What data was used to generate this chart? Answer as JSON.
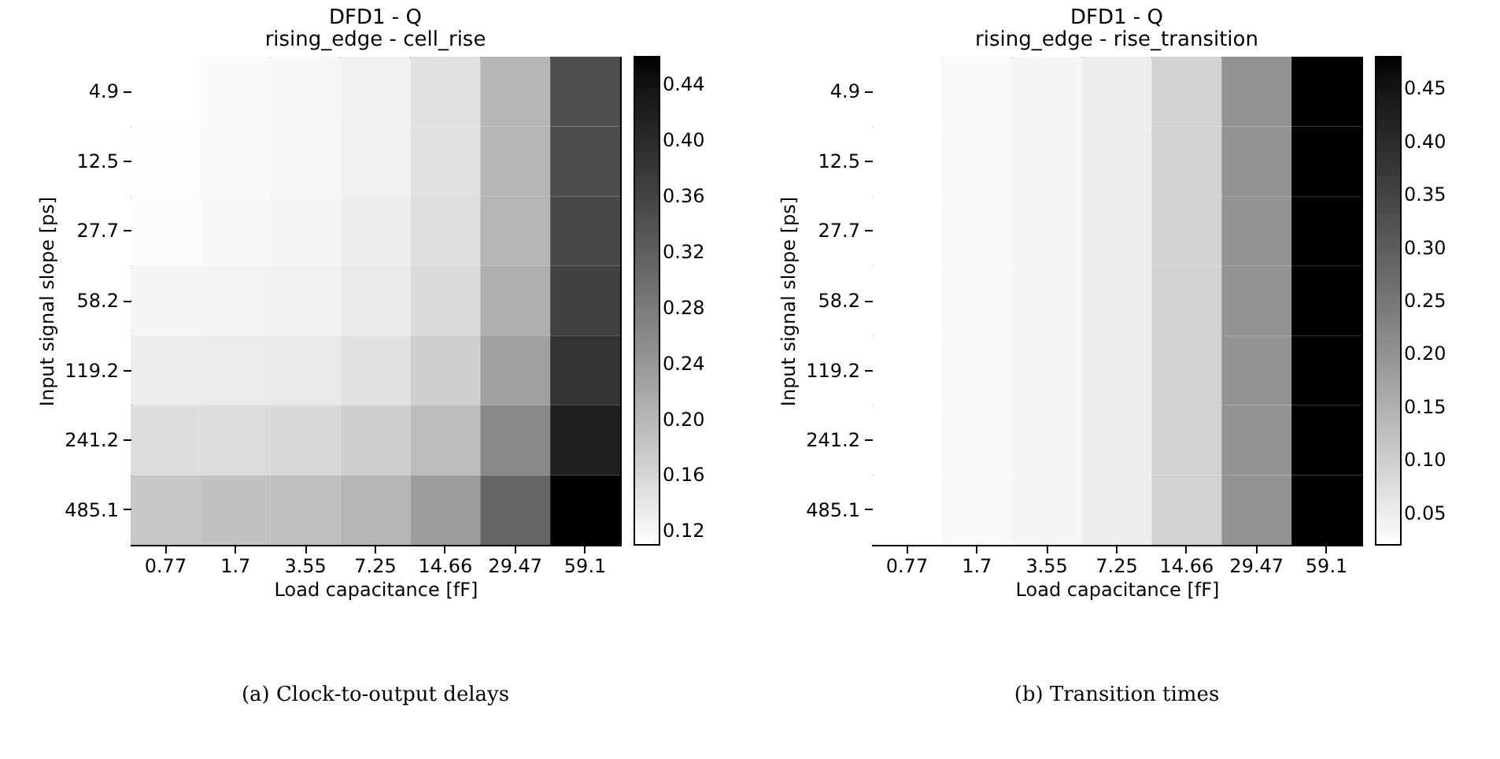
{
  "chart_data": [
    {
      "type": "heatmap",
      "title": "DFD1 - Q",
      "subtitle": "rising_edge - cell_rise",
      "xlabel": "Load capacitance [fF]",
      "ylabel": "Input signal slope [ps]",
      "categories": [
        "0.77",
        "1.7",
        "3.55",
        "7.25",
        "14.66",
        "29.47",
        "59.1"
      ],
      "y_categories": [
        "4.9",
        "12.5",
        "27.7",
        "58.2",
        "119.2",
        "241.2",
        "485.1"
      ],
      "cells": [
        [
          0.11,
          0.117,
          0.12,
          0.127,
          0.147,
          0.199,
          0.343
        ],
        [
          0.113,
          0.117,
          0.121,
          0.128,
          0.147,
          0.199,
          0.346
        ],
        [
          0.115,
          0.118,
          0.122,
          0.131,
          0.15,
          0.202,
          0.353
        ],
        [
          0.122,
          0.125,
          0.128,
          0.136,
          0.155,
          0.21,
          0.364
        ],
        [
          0.131,
          0.133,
          0.137,
          0.147,
          0.169,
          0.229,
          0.385
        ],
        [
          0.151,
          0.154,
          0.158,
          0.169,
          0.192,
          0.261,
          0.419
        ],
        [
          0.179,
          0.185,
          0.19,
          0.202,
          0.234,
          0.309,
          0.46
        ]
      ],
      "clim": [
        0.11,
        0.46
      ],
      "cticks": [
        0.12,
        0.16,
        {
          "value": 0.2,
          "label": "0.20"
        },
        0.24,
        0.28,
        0.32,
        0.36,
        {
          "value": 0.4,
          "label": "0.40"
        },
        0.44
      ],
      "annotations": [
        "(a) Clock-to-output delays"
      ]
    },
    {
      "type": "heatmap",
      "title": "DFD1 - Q",
      "subtitle": "rising_edge - rise_transition",
      "xlabel": "Load capacitance [fF]",
      "ylabel": "Input signal slope [ps]",
      "categories": [
        "0.77",
        "1.7",
        "3.55",
        "7.25",
        "14.66",
        "29.47",
        "59.1"
      ],
      "y_categories": [
        "4.9",
        "12.5",
        "27.7",
        "58.2",
        "119.2",
        "241.2",
        "485.1"
      ],
      "cells": [
        [
          0.02,
          0.029,
          0.036,
          0.047,
          0.093,
          0.2,
          0.48
        ],
        [
          0.02,
          0.029,
          0.036,
          0.047,
          0.093,
          0.2,
          0.48
        ],
        [
          0.02,
          0.029,
          0.036,
          0.047,
          0.093,
          0.2,
          0.48
        ],
        [
          0.02,
          0.029,
          0.036,
          0.047,
          0.093,
          0.2,
          0.48
        ],
        [
          0.02,
          0.029,
          0.036,
          0.047,
          0.093,
          0.2,
          0.48
        ],
        [
          0.02,
          0.029,
          0.036,
          0.047,
          0.093,
          0.2,
          0.48
        ],
        [
          0.02,
          0.029,
          0.036,
          0.047,
          0.093,
          0.2,
          0.48
        ]
      ],
      "clim": [
        0.02,
        0.48
      ],
      "cticks": [
        0.05,
        {
          "value": 0.1,
          "label": "0.10"
        },
        0.15,
        {
          "value": 0.2,
          "label": "0.20"
        },
        0.25,
        {
          "value": 0.3,
          "label": "0.30"
        },
        0.35,
        {
          "value": 0.4,
          "label": "0.40"
        },
        0.45
      ],
      "annotations": [
        "(b) Transition times"
      ]
    }
  ]
}
